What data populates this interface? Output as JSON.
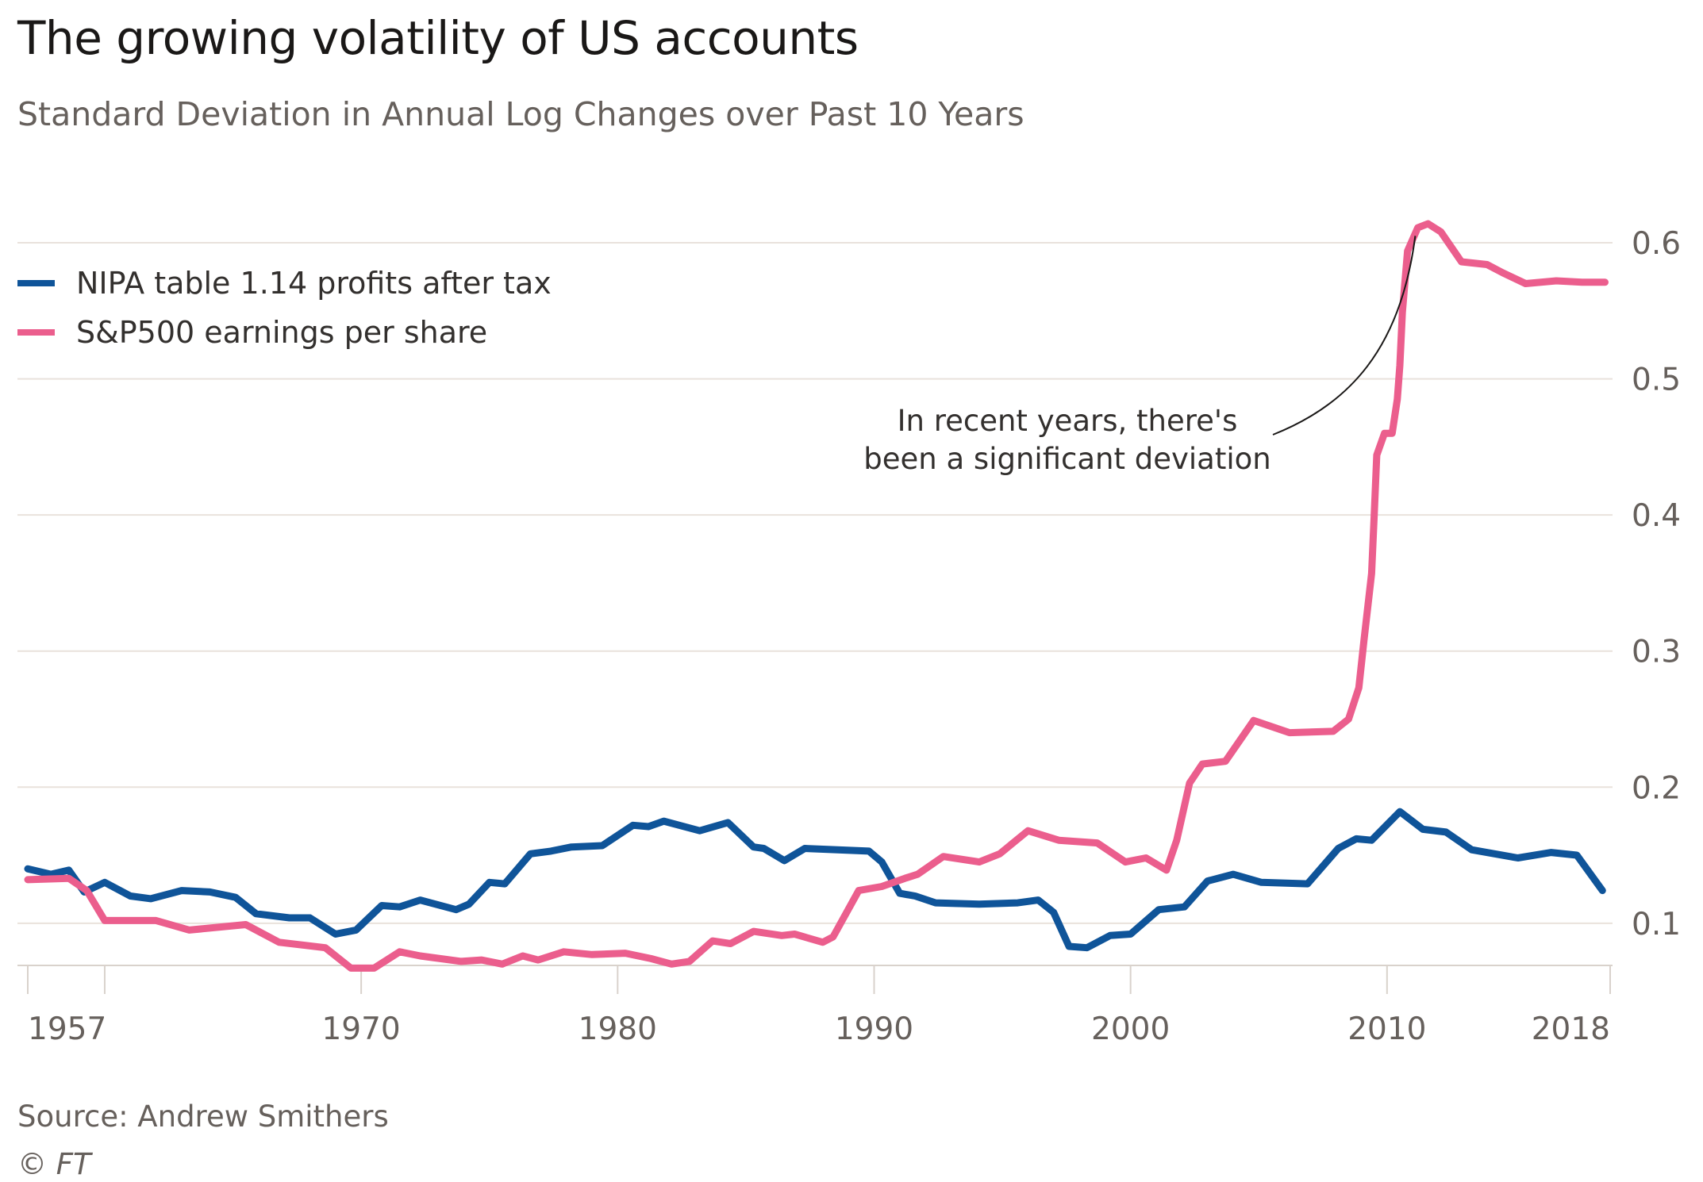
{
  "header": {
    "title": "The growing volatility of US accounts",
    "subtitle": "Standard Deviation in Annual Log Changes over Past 10 Years"
  },
  "footer": {
    "source": "Source: Andrew Smithers",
    "copyright": "© FT"
  },
  "colors": {
    "nipa": "#0f5499",
    "sp500": "#eb5e8d",
    "grid": "#e9e2dc",
    "axis_text": "#66605c",
    "annotation": "#33302e"
  },
  "chart_data": {
    "type": "line",
    "title": "The growing volatility of US accounts",
    "subtitle": "Standard Deviation in Annual Log Changes over Past 10 Years",
    "xlabel": "",
    "ylabel": "",
    "xlim": [
      1957,
      2018.7
    ],
    "ylim": [
      0.069,
      0.62
    ],
    "grid": true,
    "legend_position": "top-left",
    "y_axis_side": "right",
    "x_ticks": [
      1957,
      1960,
      1970,
      1980,
      1990,
      2000,
      2010,
      2018.7
    ],
    "x_tick_labels": [
      {
        "value": 1957,
        "label": "1957"
      },
      {
        "value": 1970,
        "label": "1970"
      },
      {
        "value": 1980,
        "label": "1980"
      },
      {
        "value": 1990,
        "label": "1990"
      },
      {
        "value": 2000,
        "label": "2000"
      },
      {
        "value": 2010,
        "label": "2010"
      },
      {
        "value": 2018.7,
        "label": "2018"
      }
    ],
    "y_ticks": [
      {
        "value": 0.1,
        "label": "0.1"
      },
      {
        "value": 0.2,
        "label": "0.2"
      },
      {
        "value": 0.3,
        "label": "0.3"
      },
      {
        "value": 0.4,
        "label": "0.4"
      },
      {
        "value": 0.5,
        "label": "0.5"
      },
      {
        "value": 0.6,
        "label": "0.6"
      }
    ],
    "series": [
      {
        "name": "NIPA table 1.14 profits after tax",
        "color_key": "nipa",
        "points": [
          [
            1957.0,
            0.14
          ],
          [
            1957.9,
            0.136
          ],
          [
            1958.6,
            0.139
          ],
          [
            1959.2,
            0.123
          ],
          [
            1960.0,
            0.13
          ],
          [
            1961.0,
            0.12
          ],
          [
            1961.8,
            0.118
          ],
          [
            1963.0,
            0.124
          ],
          [
            1964.1,
            0.123
          ],
          [
            1965.1,
            0.119
          ],
          [
            1965.9,
            0.107
          ],
          [
            1967.2,
            0.104
          ],
          [
            1968.0,
            0.104
          ],
          [
            1969.0,
            0.092
          ],
          [
            1969.8,
            0.095
          ],
          [
            1970.8,
            0.113
          ],
          [
            1971.5,
            0.112
          ],
          [
            1972.3,
            0.117
          ],
          [
            1973.7,
            0.11
          ],
          [
            1974.2,
            0.114
          ],
          [
            1975.0,
            0.13
          ],
          [
            1975.6,
            0.129
          ],
          [
            1976.6,
            0.151
          ],
          [
            1977.4,
            0.153
          ],
          [
            1978.2,
            0.156
          ],
          [
            1979.4,
            0.157
          ],
          [
            1980.6,
            0.172
          ],
          [
            1981.2,
            0.171
          ],
          [
            1981.8,
            0.175
          ],
          [
            1983.2,
            0.168
          ],
          [
            1984.3,
            0.174
          ],
          [
            1985.3,
            0.156
          ],
          [
            1985.7,
            0.155
          ],
          [
            1986.5,
            0.146
          ],
          [
            1987.3,
            0.155
          ],
          [
            1989.8,
            0.153
          ],
          [
            1990.3,
            0.145
          ],
          [
            1991.0,
            0.122
          ],
          [
            1991.6,
            0.12
          ],
          [
            1992.4,
            0.115
          ],
          [
            1994.1,
            0.114
          ],
          [
            1995.6,
            0.115
          ],
          [
            1996.4,
            0.117
          ],
          [
            1997.0,
            0.108
          ],
          [
            1997.6,
            0.083
          ],
          [
            1998.3,
            0.082
          ],
          [
            1999.2,
            0.091
          ],
          [
            2000.0,
            0.092
          ],
          [
            2001.1,
            0.11
          ],
          [
            2002.1,
            0.112
          ],
          [
            2003.0,
            0.131
          ],
          [
            2004.0,
            0.136
          ],
          [
            2005.1,
            0.13
          ],
          [
            2006.9,
            0.129
          ],
          [
            2008.1,
            0.155
          ],
          [
            2008.8,
            0.162
          ],
          [
            2009.4,
            0.161
          ],
          [
            2010.5,
            0.182
          ],
          [
            2011.4,
            0.169
          ],
          [
            2012.3,
            0.167
          ],
          [
            2013.3,
            0.154
          ],
          [
            2015.1,
            0.148
          ],
          [
            2016.4,
            0.152
          ],
          [
            2017.4,
            0.15
          ],
          [
            2018.4,
            0.124
          ]
        ]
      },
      {
        "name": "S&P500 earnings per share",
        "color_key": "sp500",
        "points": [
          [
            1957.0,
            0.132
          ],
          [
            1958.6,
            0.133
          ],
          [
            1959.3,
            0.124
          ],
          [
            1960.0,
            0.102
          ],
          [
            1962.0,
            0.102
          ],
          [
            1963.3,
            0.095
          ],
          [
            1965.5,
            0.099
          ],
          [
            1966.8,
            0.086
          ],
          [
            1968.6,
            0.082
          ],
          [
            1969.6,
            0.067
          ],
          [
            1970.5,
            0.067
          ],
          [
            1971.5,
            0.079
          ],
          [
            1972.3,
            0.076
          ],
          [
            1973.9,
            0.072
          ],
          [
            1974.7,
            0.073
          ],
          [
            1975.5,
            0.07
          ],
          [
            1976.3,
            0.076
          ],
          [
            1976.9,
            0.073
          ],
          [
            1977.9,
            0.079
          ],
          [
            1979.0,
            0.077
          ],
          [
            1980.3,
            0.078
          ],
          [
            1981.3,
            0.074
          ],
          [
            1982.1,
            0.07
          ],
          [
            1982.8,
            0.072
          ],
          [
            1983.7,
            0.087
          ],
          [
            1984.4,
            0.085
          ],
          [
            1985.3,
            0.094
          ],
          [
            1986.4,
            0.091
          ],
          [
            1986.9,
            0.092
          ],
          [
            1988.0,
            0.086
          ],
          [
            1988.4,
            0.09
          ],
          [
            1989.4,
            0.124
          ],
          [
            1990.3,
            0.127
          ],
          [
            1991.2,
            0.133
          ],
          [
            1991.7,
            0.136
          ],
          [
            1992.7,
            0.149
          ],
          [
            1994.1,
            0.145
          ],
          [
            1994.9,
            0.151
          ],
          [
            1996.0,
            0.168
          ],
          [
            1997.2,
            0.161
          ],
          [
            1998.7,
            0.159
          ],
          [
            1999.8,
            0.145
          ],
          [
            2000.6,
            0.148
          ],
          [
            2001.4,
            0.139
          ],
          [
            2001.8,
            0.161
          ],
          [
            2002.3,
            0.203
          ],
          [
            2002.8,
            0.217
          ],
          [
            2003.7,
            0.219
          ],
          [
            2004.8,
            0.249
          ],
          [
            2006.2,
            0.24
          ],
          [
            2007.9,
            0.241
          ],
          [
            2008.5,
            0.25
          ],
          [
            2008.9,
            0.273
          ],
          [
            2009.1,
            0.308
          ],
          [
            2009.4,
            0.357
          ],
          [
            2009.5,
            0.4
          ],
          [
            2009.6,
            0.444
          ],
          [
            2009.9,
            0.46
          ],
          [
            2010.2,
            0.46
          ],
          [
            2010.4,
            0.485
          ],
          [
            2010.5,
            0.51
          ],
          [
            2010.6,
            0.549
          ],
          [
            2010.8,
            0.594
          ],
          [
            2011.2,
            0.611
          ],
          [
            2011.6,
            0.614
          ],
          [
            2012.1,
            0.608
          ],
          [
            2012.9,
            0.586
          ],
          [
            2013.9,
            0.584
          ],
          [
            2014.5,
            0.578
          ],
          [
            2015.4,
            0.57
          ],
          [
            2016.6,
            0.572
          ],
          [
            2017.6,
            0.571
          ],
          [
            2018.5,
            0.571
          ]
        ]
      }
    ],
    "annotations": [
      {
        "lines": [
          "In recent years, there's",
          "been a significant deviation"
        ],
        "points_to": [
          2011.1,
          0.605
        ]
      }
    ]
  }
}
